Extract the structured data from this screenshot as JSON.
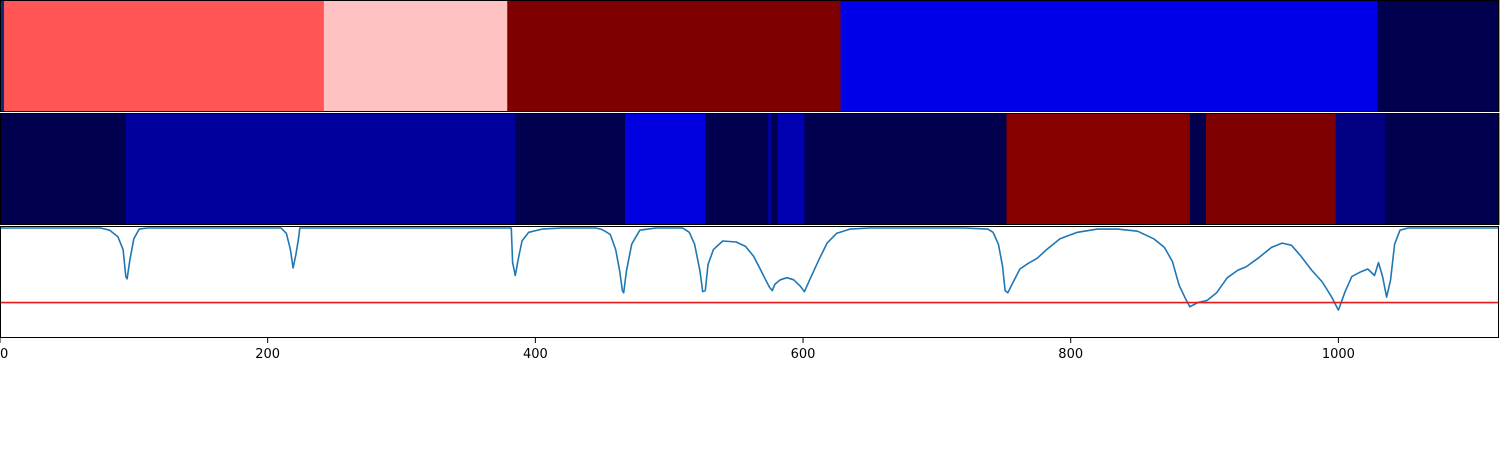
{
  "chart_data": [
    {
      "type": "heatmap",
      "panel": "top-strip",
      "xlim": [
        0,
        1120
      ],
      "segments": [
        {
          "x0": 0,
          "x1": 3,
          "color": "#0a2a7a"
        },
        {
          "x0": 3,
          "x1": 242,
          "color": "#ff5555"
        },
        {
          "x0": 242,
          "x1": 379,
          "color": "#ffc2c2"
        },
        {
          "x0": 379,
          "x1": 628,
          "color": "#7e0000"
        },
        {
          "x0": 628,
          "x1": 1029,
          "color": "#0000e8"
        },
        {
          "x0": 1029,
          "x1": 1120,
          "color": "#00004e"
        }
      ]
    },
    {
      "type": "heatmap",
      "panel": "middle-strip",
      "xlim": [
        0,
        1120
      ],
      "segments": [
        {
          "x0": 0,
          "x1": 94,
          "color": "#00004e"
        },
        {
          "x0": 94,
          "x1": 385,
          "color": "#00009e"
        },
        {
          "x0": 385,
          "x1": 467,
          "color": "#00004e"
        },
        {
          "x0": 467,
          "x1": 527,
          "color": "#0000e0"
        },
        {
          "x0": 527,
          "x1": 574,
          "color": "#00004e"
        },
        {
          "x0": 574,
          "x1": 576,
          "color": "#0000b0"
        },
        {
          "x0": 576,
          "x1": 581,
          "color": "#00004e"
        },
        {
          "x0": 581,
          "x1": 601,
          "color": "#0000b0"
        },
        {
          "x0": 601,
          "x1": 752,
          "color": "#00004e"
        },
        {
          "x0": 752,
          "x1": 889,
          "color": "#860000"
        },
        {
          "x0": 889,
          "x1": 901,
          "color": "#00004e"
        },
        {
          "x0": 901,
          "x1": 998,
          "color": "#7e0000"
        },
        {
          "x0": 998,
          "x1": 1035,
          "color": "#000080"
        },
        {
          "x0": 1035,
          "x1": 1120,
          "color": "#00004e"
        }
      ]
    },
    {
      "type": "line",
      "panel": "bottom-line",
      "xlim": [
        0,
        1120
      ],
      "ylim": [
        0,
        1
      ],
      "xticks": [
        0,
        200,
        400,
        600,
        800,
        1000
      ],
      "threshold": 0.31,
      "series_color": "#1f77b4",
      "threshold_color": "#e31a1c",
      "points": [
        [
          0,
          1
        ],
        [
          75,
          1
        ],
        [
          82,
          0.98
        ],
        [
          88,
          0.92
        ],
        [
          92,
          0.8
        ],
        [
          94,
          0.55
        ],
        [
          95,
          0.53
        ],
        [
          97,
          0.7
        ],
        [
          100,
          0.9
        ],
        [
          104,
          0.99
        ],
        [
          110,
          1
        ],
        [
          210,
          1
        ],
        [
          214,
          0.95
        ],
        [
          217,
          0.8
        ],
        [
          219,
          0.63
        ],
        [
          221,
          0.75
        ],
        [
          223,
          0.9
        ],
        [
          224,
          1
        ],
        [
          382,
          1
        ],
        [
          383,
          0.68
        ],
        [
          385,
          0.56
        ],
        [
          387,
          0.7
        ],
        [
          390,
          0.88
        ],
        [
          395,
          0.96
        ],
        [
          405,
          0.99
        ],
        [
          420,
          1
        ],
        [
          445,
          1
        ],
        [
          449,
          0.99
        ],
        [
          452,
          0.97
        ],
        [
          456,
          0.94
        ],
        [
          460,
          0.8
        ],
        [
          463,
          0.6
        ],
        [
          465,
          0.42
        ],
        [
          466,
          0.4
        ],
        [
          468,
          0.6
        ],
        [
          472,
          0.85
        ],
        [
          478,
          0.98
        ],
        [
          490,
          1
        ],
        [
          510,
          1
        ],
        [
          515,
          0.96
        ],
        [
          519,
          0.85
        ],
        [
          523,
          0.6
        ],
        [
          525,
          0.41
        ],
        [
          527,
          0.42
        ],
        [
          529,
          0.66
        ],
        [
          533,
          0.8
        ],
        [
          540,
          0.88
        ],
        [
          550,
          0.87
        ],
        [
          557,
          0.83
        ],
        [
          563,
          0.74
        ],
        [
          568,
          0.62
        ],
        [
          572,
          0.52
        ],
        [
          575,
          0.45
        ],
        [
          577,
          0.42
        ],
        [
          579,
          0.48
        ],
        [
          583,
          0.52
        ],
        [
          588,
          0.54
        ],
        [
          593,
          0.52
        ],
        [
          598,
          0.46
        ],
        [
          601,
          0.41
        ],
        [
          605,
          0.52
        ],
        [
          612,
          0.71
        ],
        [
          618,
          0.86
        ],
        [
          625,
          0.95
        ],
        [
          635,
          0.99
        ],
        [
          650,
          1
        ],
        [
          720,
          1
        ],
        [
          738,
          0.99
        ],
        [
          742,
          0.96
        ],
        [
          746,
          0.85
        ],
        [
          749,
          0.65
        ],
        [
          751,
          0.42
        ],
        [
          753,
          0.4
        ],
        [
          757,
          0.5
        ],
        [
          762,
          0.62
        ],
        [
          768,
          0.67
        ],
        [
          775,
          0.72
        ],
        [
          782,
          0.8
        ],
        [
          792,
          0.9
        ],
        [
          805,
          0.96
        ],
        [
          820,
          0.99
        ],
        [
          835,
          0.99
        ],
        [
          850,
          0.97
        ],
        [
          862,
          0.9
        ],
        [
          870,
          0.82
        ],
        [
          876,
          0.69
        ],
        [
          881,
          0.47
        ],
        [
          886,
          0.34
        ],
        [
          889,
          0.27
        ],
        [
          895,
          0.31
        ],
        [
          902,
          0.33
        ],
        [
          909,
          0.4
        ],
        [
          917,
          0.54
        ],
        [
          925,
          0.61
        ],
        [
          931,
          0.64
        ],
        [
          940,
          0.72
        ],
        [
          950,
          0.82
        ],
        [
          958,
          0.86
        ],
        [
          965,
          0.84
        ],
        [
          972,
          0.74
        ],
        [
          980,
          0.61
        ],
        [
          988,
          0.5
        ],
        [
          995,
          0.36
        ],
        [
          1000,
          0.24
        ],
        [
          1005,
          0.41
        ],
        [
          1010,
          0.55
        ],
        [
          1016,
          0.59
        ],
        [
          1022,
          0.62
        ],
        [
          1027,
          0.56
        ],
        [
          1030,
          0.68
        ],
        [
          1033,
          0.55
        ],
        [
          1036,
          0.36
        ],
        [
          1039,
          0.52
        ],
        [
          1042,
          0.85
        ],
        [
          1046,
          0.98
        ],
        [
          1052,
          1
        ],
        [
          1120,
          1
        ]
      ]
    }
  ]
}
